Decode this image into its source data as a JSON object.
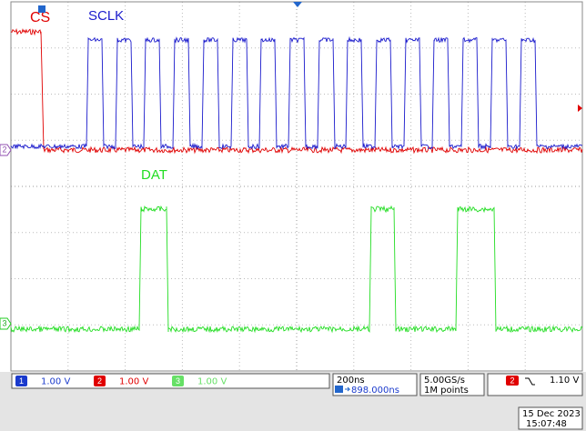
{
  "labels": {
    "cs": "CS",
    "sclk": "SCLK",
    "dat": "DAT"
  },
  "markers": {
    "ch2": "2",
    "ch3": "3"
  },
  "status": {
    "channels": [
      {
        "id": "1",
        "scale": "1.00 V"
      },
      {
        "id": "2",
        "scale": "1.00 V"
      },
      {
        "id": "3",
        "scale": "1.00 V"
      }
    ],
    "timebase": "200ns",
    "trigger_pos": "898.000ns",
    "sample_rate": "5.00GS/s",
    "record": "1M points",
    "trigger": {
      "channel": "2",
      "level": "1.10 V"
    },
    "date": "15 Dec 2023",
    "time": "15:07:48"
  }
}
